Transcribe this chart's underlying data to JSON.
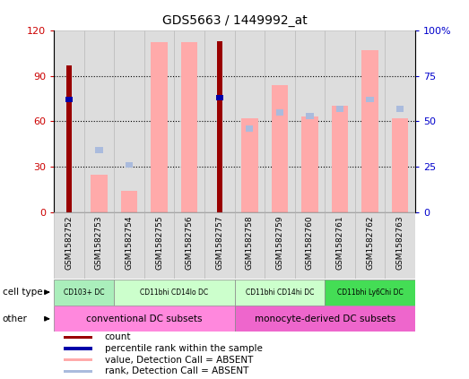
{
  "title": "GDS5663 / 1449992_at",
  "samples": [
    "GSM1582752",
    "GSM1582753",
    "GSM1582754",
    "GSM1582755",
    "GSM1582756",
    "GSM1582757",
    "GSM1582758",
    "GSM1582759",
    "GSM1582760",
    "GSM1582761",
    "GSM1582762",
    "GSM1582763"
  ],
  "count_values": [
    97,
    0,
    0,
    0,
    0,
    113,
    0,
    0,
    0,
    0,
    0,
    0
  ],
  "percentile_rank": [
    62,
    0,
    0,
    0,
    0,
    63,
    0,
    0,
    0,
    0,
    0,
    0
  ],
  "absent_value": [
    0,
    25,
    14,
    112,
    112,
    0,
    62,
    84,
    63,
    70,
    107,
    62
  ],
  "absent_rank": [
    0,
    34,
    26,
    0,
    0,
    0,
    46,
    55,
    53,
    57,
    62,
    57
  ],
  "ylim_left": [
    0,
    120
  ],
  "ylim_right": [
    0,
    100
  ],
  "yticks_left": [
    0,
    30,
    60,
    90,
    120
  ],
  "yticks_right": [
    0,
    25,
    50,
    75,
    100
  ],
  "ytick_labels_left": [
    "0",
    "30",
    "60",
    "90",
    "120"
  ],
  "ytick_labels_right": [
    "0",
    "25",
    "50",
    "75",
    "100%"
  ],
  "cell_type_groups": [
    {
      "label": "CD103+ DC",
      "start": 0,
      "end": 2,
      "color": "#AAEEBB"
    },
    {
      "label": "CD11bhi CD14lo DC",
      "start": 2,
      "end": 6,
      "color": "#CCFFCC"
    },
    {
      "label": "CD11bhi CD14hi DC",
      "start": 6,
      "end": 9,
      "color": "#CCFFCC"
    },
    {
      "label": "CD11bhi Ly6Chi DC",
      "start": 9,
      "end": 12,
      "color": "#44DD55"
    }
  ],
  "other_groups": [
    {
      "label": "conventional DC subsets",
      "start": 0,
      "end": 6,
      "color": "#FF88DD"
    },
    {
      "label": "monocyte-derived DC subsets",
      "start": 6,
      "end": 12,
      "color": "#EE66CC"
    }
  ],
  "count_color": "#990000",
  "percentile_color": "#0000AA",
  "absent_val_color": "#FFAAAA",
  "absent_rank_color": "#AABBDD",
  "grid_color": "#000000",
  "bg_color": "#FFFFFF",
  "col_bg_color": "#DDDDDD",
  "tick_label_color_left": "#CC0000",
  "tick_label_color_right": "#0000CC",
  "legend_items": [
    {
      "label": "count",
      "color": "#990000"
    },
    {
      "label": "percentile rank within the sample",
      "color": "#0000AA"
    },
    {
      "label": "value, Detection Call = ABSENT",
      "color": "#FFAAAA"
    },
    {
      "label": "rank, Detection Call = ABSENT",
      "color": "#AABBDD"
    }
  ]
}
